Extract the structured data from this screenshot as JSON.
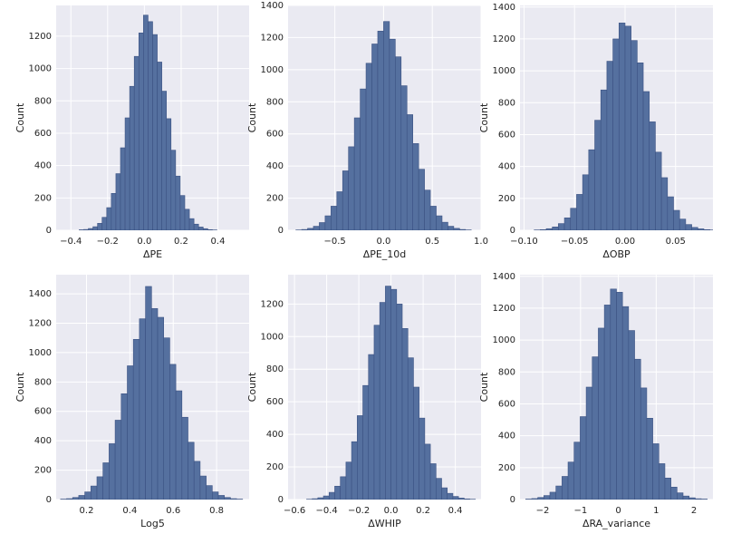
{
  "chart_data": [
    {
      "type": "histogram",
      "xlabel": "ΔPE",
      "ylabel": "Count",
      "color": "#55709f",
      "edge": "#3b5283",
      "grid": true,
      "bins": [
        -0.355,
        -0.33,
        -0.305,
        -0.28,
        -0.255,
        -0.23,
        -0.205,
        -0.18,
        -0.155,
        -0.13,
        -0.105,
        -0.08,
        -0.055,
        -0.03,
        -0.005,
        0.02,
        0.045,
        0.07,
        0.095,
        0.12,
        0.145,
        0.17,
        0.195,
        0.22,
        0.245,
        0.27,
        0.295,
        0.32,
        0.345,
        0.37,
        0.395
      ],
      "values": [
        3,
        5,
        11,
        22,
        43,
        80,
        140,
        228,
        350,
        510,
        695,
        890,
        1075,
        1220,
        1330,
        1290,
        1210,
        1040,
        860,
        690,
        495,
        335,
        215,
        130,
        72,
        38,
        20,
        10,
        4,
        2
      ],
      "xlim": [
        -0.48,
        0.57
      ],
      "ylim": [
        0,
        1390
      ],
      "xticks": [
        {
          "value": -0.4,
          "label": "−0.4"
        },
        {
          "value": -0.2,
          "label": "−0.2"
        },
        {
          "value": 0,
          "label": "0.0"
        },
        0.2,
        0.4
      ],
      "yticks": [
        0,
        200,
        400,
        600,
        800,
        1000,
        1200
      ]
    },
    {
      "type": "histogram",
      "xlabel": "ΔPE_10d",
      "ylabel": "Count",
      "color": "#55709f",
      "edge": "#3b5283",
      "grid": true,
      "bins": [
        -0.9,
        -0.84,
        -0.78,
        -0.72,
        -0.66,
        -0.6,
        -0.54,
        -0.48,
        -0.42,
        -0.36,
        -0.3,
        -0.24,
        -0.18,
        -0.12,
        -0.06,
        0,
        0.06,
        0.12,
        0.18,
        0.24,
        0.3,
        0.36,
        0.42,
        0.48,
        0.54,
        0.6,
        0.66,
        0.72,
        0.78,
        0.84,
        0.9
      ],
      "values": [
        2,
        5,
        12,
        25,
        48,
        90,
        150,
        240,
        370,
        520,
        700,
        880,
        1040,
        1160,
        1240,
        1300,
        1190,
        1080,
        900,
        720,
        540,
        380,
        250,
        150,
        90,
        50,
        25,
        12,
        5,
        2
      ],
      "xlim": [
        -0.98,
        1.0
      ],
      "ylim": [
        0,
        1400
      ],
      "xticks": [
        {
          "value": -0.5,
          "label": "−0.5"
        },
        {
          "value": 0,
          "label": "0.0"
        },
        0.5,
        {
          "value": 1,
          "label": "1.0"
        }
      ],
      "yticks": [
        0,
        200,
        400,
        600,
        800,
        1000,
        1200,
        1400
      ]
    },
    {
      "type": "histogram",
      "xlabel": "ΔOBP",
      "ylabel": "Count",
      "color": "#55709f",
      "edge": "#3b5283",
      "grid": true,
      "bins": [
        -0.09,
        -0.084,
        -0.078,
        -0.072,
        -0.066,
        -0.06,
        -0.054,
        -0.048,
        -0.042,
        -0.036,
        -0.03,
        -0.024,
        -0.018,
        -0.012,
        -0.006,
        0,
        0.006,
        0.012,
        0.018,
        0.024,
        0.03,
        0.036,
        0.042,
        0.048,
        0.054,
        0.06,
        0.066,
        0.072,
        0.078,
        0.084,
        0.09
      ],
      "values": [
        2,
        4,
        10,
        21,
        42,
        78,
        138,
        225,
        348,
        505,
        690,
        880,
        1060,
        1200,
        1300,
        1280,
        1190,
        1050,
        870,
        680,
        490,
        330,
        210,
        125,
        70,
        36,
        18,
        9,
        4,
        2
      ],
      "xlim": [
        -0.104,
        0.087
      ],
      "ylim": [
        0,
        1410
      ],
      "xticks": [
        {
          "value": -0.1,
          "label": "−0.10"
        },
        {
          "value": -0.05,
          "label": "−0.05"
        },
        {
          "value": 0,
          "label": "0.00"
        },
        0.05
      ],
      "yticks": [
        0,
        200,
        400,
        600,
        800,
        1000,
        1200,
        1400
      ]
    },
    {
      "type": "histogram",
      "xlabel": "Log5",
      "ylabel": "Count",
      "color": "#55709f",
      "edge": "#3b5283",
      "grid": true,
      "bins": [
        0.08,
        0.108,
        0.136,
        0.164,
        0.192,
        0.22,
        0.248,
        0.276,
        0.304,
        0.332,
        0.36,
        0.388,
        0.416,
        0.444,
        0.472,
        0.5,
        0.528,
        0.556,
        0.584,
        0.612,
        0.64,
        0.668,
        0.696,
        0.724,
        0.752,
        0.78,
        0.808,
        0.836,
        0.864,
        0.892,
        0.92
      ],
      "values": [
        3,
        6,
        14,
        28,
        52,
        92,
        155,
        250,
        380,
        540,
        720,
        910,
        1090,
        1230,
        1450,
        1300,
        1240,
        1100,
        920,
        740,
        560,
        390,
        260,
        160,
        95,
        52,
        28,
        14,
        6,
        3
      ],
      "xlim": [
        0.06,
        0.95
      ],
      "ylim": [
        0,
        1530
      ],
      "xticks": [
        0.2,
        0.4,
        0.6,
        0.8
      ],
      "yticks": [
        0,
        200,
        400,
        600,
        800,
        1000,
        1200,
        1400
      ]
    },
    {
      "type": "histogram",
      "xlabel": "ΔWHIP",
      "ylabel": "Count",
      "color": "#55709f",
      "edge": "#3b5283",
      "grid": true,
      "bins": [
        -0.525,
        -0.49,
        -0.455,
        -0.42,
        -0.385,
        -0.35,
        -0.315,
        -0.28,
        -0.245,
        -0.21,
        -0.175,
        -0.14,
        -0.105,
        -0.07,
        -0.035,
        0,
        0.035,
        0.07,
        0.105,
        0.14,
        0.175,
        0.21,
        0.245,
        0.28,
        0.315,
        0.35,
        0.385,
        0.42,
        0.455,
        0.49,
        0.525
      ],
      "values": [
        2,
        5,
        11,
        22,
        44,
        82,
        140,
        230,
        355,
        515,
        700,
        890,
        1070,
        1210,
        1310,
        1290,
        1200,
        1050,
        870,
        690,
        500,
        340,
        220,
        130,
        72,
        38,
        19,
        9,
        4,
        2
      ],
      "xlim": [
        -0.64,
        0.56
      ],
      "ylim": [
        0,
        1380
      ],
      "xticks": [
        {
          "value": -0.6,
          "label": "−0.6"
        },
        {
          "value": -0.4,
          "label": "−0.4"
        },
        {
          "value": -0.2,
          "label": "−0.2"
        },
        {
          "value": 0,
          "label": "0.0"
        },
        0.2,
        0.4
      ],
      "yticks": [
        0,
        200,
        400,
        600,
        800,
        1000,
        1200
      ]
    },
    {
      "type": "histogram",
      "xlabel": "ΔRA_variance",
      "ylabel": "Count",
      "color": "#55709f",
      "edge": "#3b5283",
      "grid": true,
      "bins": [
        -2.45,
        -2.29,
        -2.13,
        -1.97,
        -1.81,
        -1.65,
        -1.49,
        -1.33,
        -1.17,
        -1.01,
        -0.85,
        -0.69,
        -0.53,
        -0.37,
        -0.21,
        -0.05,
        0.11,
        0.27,
        0.43,
        0.59,
        0.75,
        0.91,
        1.07,
        1.23,
        1.39,
        1.55,
        1.71,
        1.87,
        2.03,
        2.19,
        2.35
      ],
      "values": [
        3,
        6,
        13,
        25,
        46,
        85,
        145,
        235,
        360,
        520,
        705,
        895,
        1075,
        1220,
        1320,
        1300,
        1210,
        1060,
        880,
        700,
        510,
        350,
        225,
        135,
        78,
        42,
        22,
        11,
        5,
        3
      ],
      "xlim": [
        -2.6,
        2.5
      ],
      "ylim": [
        0,
        1410
      ],
      "xticks": [
        {
          "value": -2,
          "label": "−2"
        },
        {
          "value": -1,
          "label": "−1"
        },
        0,
        1,
        2
      ],
      "yticks": [
        0,
        200,
        400,
        600,
        800,
        1000,
        1200,
        1400
      ]
    }
  ]
}
